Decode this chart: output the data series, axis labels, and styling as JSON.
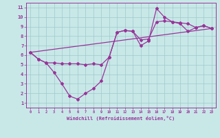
{
  "line1_x": [
    0,
    1,
    2,
    3,
    4,
    5,
    6,
    7,
    8,
    9,
    10,
    11,
    12,
    13,
    14,
    15,
    16,
    17,
    18,
    19,
    20,
    21,
    22,
    23
  ],
  "line1_y": [
    6.3,
    5.6,
    5.2,
    5.2,
    5.1,
    5.1,
    5.1,
    5.0,
    5.1,
    5.0,
    5.8,
    8.4,
    8.6,
    8.5,
    7.6,
    7.7,
    9.5,
    9.6,
    9.5,
    9.4,
    9.3,
    8.9,
    9.1,
    8.8
  ],
  "line2_x": [
    0,
    1,
    2,
    3,
    4,
    5,
    6,
    7,
    8,
    9,
    10,
    11,
    12,
    13,
    14,
    15,
    16,
    17,
    18,
    19,
    20,
    21,
    22,
    23
  ],
  "line2_y": [
    6.3,
    5.6,
    5.2,
    4.2,
    3.0,
    1.7,
    1.4,
    2.0,
    2.5,
    3.3,
    5.8,
    8.4,
    8.6,
    8.5,
    7.0,
    7.5,
    10.9,
    10.0,
    9.5,
    9.3,
    8.5,
    8.9,
    9.1,
    8.8
  ],
  "line3_x": [
    0,
    23
  ],
  "line3_y": [
    6.3,
    8.8
  ],
  "color": "#993399",
  "bg_color": "#c8e8e8",
  "grid_color": "#a0c8c8",
  "xlabel": "Windchill (Refroidissement éolien,°C)",
  "xlim": [
    -0.5,
    23.5
  ],
  "ylim": [
    0.5,
    11.5
  ],
  "xticks": [
    0,
    1,
    2,
    3,
    4,
    5,
    6,
    7,
    8,
    9,
    10,
    11,
    12,
    13,
    14,
    15,
    16,
    17,
    18,
    19,
    20,
    21,
    22,
    23
  ],
  "yticks": [
    1,
    2,
    3,
    4,
    5,
    6,
    7,
    8,
    9,
    10,
    11
  ]
}
